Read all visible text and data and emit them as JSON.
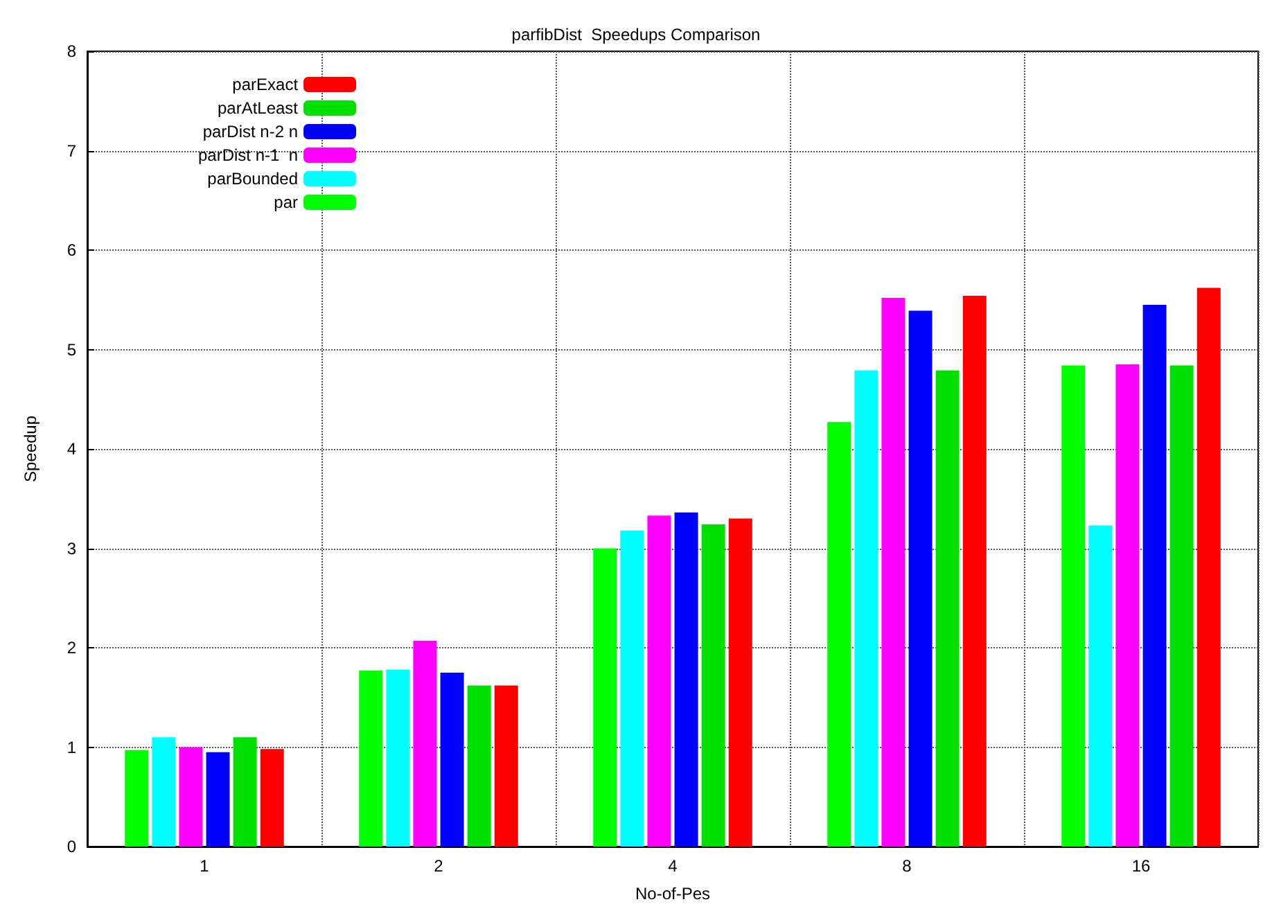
{
  "chart_data": {
    "type": "bar",
    "title": "parfibDist  Speedups Comparison",
    "xlabel": "No-of-Pes",
    "ylabel": "Speedup",
    "categories": [
      "1",
      "2",
      "4",
      "8",
      "16"
    ],
    "series": [
      {
        "name": "par",
        "color": "#00ff00",
        "values": [
          0.97,
          1.77,
          3.0,
          4.27,
          4.84
        ]
      },
      {
        "name": "parBounded",
        "color": "#00ffff",
        "values": [
          1.1,
          1.78,
          3.18,
          4.79,
          3.23
        ]
      },
      {
        "name": "parDist n-1  n",
        "color": "#ff00ff",
        "values": [
          1.0,
          2.07,
          3.33,
          5.52,
          4.85
        ]
      },
      {
        "name": "parDist n-2 n",
        "color": "#0000ff",
        "values": [
          0.95,
          1.75,
          3.36,
          5.39,
          5.45
        ]
      },
      {
        "name": "parAtLeast",
        "color": "#00e000",
        "values": [
          1.1,
          1.62,
          3.24,
          4.79,
          4.84
        ]
      },
      {
        "name": "parExact",
        "color": "#ff0000",
        "values": [
          0.98,
          1.62,
          3.3,
          5.54,
          5.62
        ]
      }
    ],
    "ylim": [
      0,
      8
    ],
    "yticks": [
      0,
      1,
      2,
      3,
      4,
      5,
      6,
      7,
      8
    ],
    "grid": true,
    "legend": "top left"
  }
}
